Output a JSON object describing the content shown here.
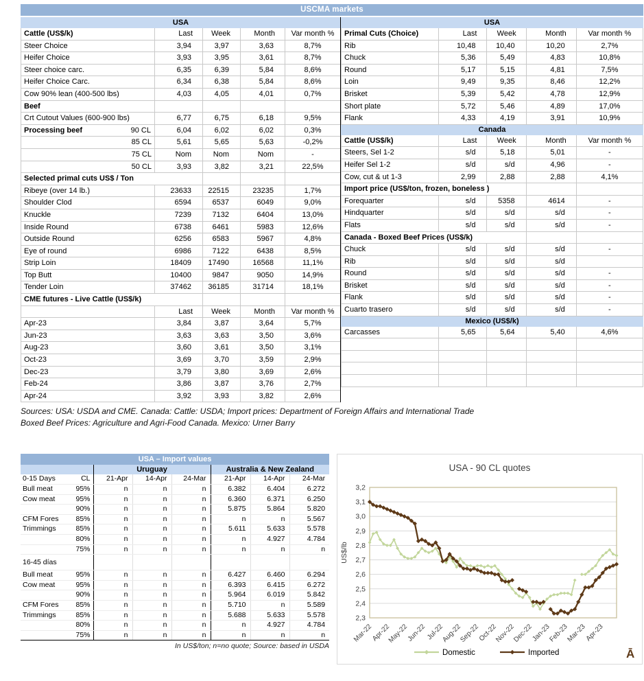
{
  "title": "USCMA markets",
  "colors": {
    "header_blue": "#95b3d7",
    "band_blue": "#c6d9f1",
    "grid_gray": "#d9d9d9",
    "plot_border_tan": "#c8c09a",
    "domestic_green": "#c2d69b",
    "imported_brown": "#5e3a18"
  },
  "left_table": {
    "rows": [
      {
        "t": "band",
        "label": "USA"
      },
      {
        "t": "header",
        "label": "Cattle (US$/k)",
        "bold": true,
        "cells": [
          "Last",
          "Week",
          "Month",
          "Var month %"
        ]
      },
      {
        "t": "d",
        "label": "Steer Choice",
        "cells": [
          "3,94",
          "3,97",
          "3,63",
          "8,7%"
        ]
      },
      {
        "t": "d",
        "label": "Heifer Choice",
        "cells": [
          "3,93",
          "3,95",
          "3,61",
          "8,7%"
        ]
      },
      {
        "t": "d",
        "label": "Steer choice carc.",
        "cells": [
          "6,35",
          "6,39",
          "5,84",
          "8,6%"
        ]
      },
      {
        "t": "d",
        "label": "Heifer Choice Carc.",
        "cells": [
          "6,34",
          "6,38",
          "5,84",
          "8,6%"
        ]
      },
      {
        "t": "d",
        "label": "Cow 90% lean (400-500 lbs)",
        "cells": [
          "4,03",
          "4,05",
          "4,01",
          "0,7%"
        ]
      },
      {
        "t": "d",
        "label": "Beef",
        "bold": true,
        "cells": [
          "",
          "",
          "",
          ""
        ]
      },
      {
        "t": "d",
        "label": "Crt Cutout Values (600-900 lbs)",
        "cells": [
          "6,77",
          "6,75",
          "6,18",
          "9,5%"
        ]
      },
      {
        "t": "split",
        "label": "Processing beef",
        "sublabel": "90 CL",
        "cells": [
          "6,04",
          "6,02",
          "6,02",
          "0,3%"
        ]
      },
      {
        "t": "r",
        "label": "85 CL",
        "cells": [
          "5,61",
          "5,65",
          "5,63",
          "-0,2%"
        ]
      },
      {
        "t": "r",
        "label": "75 CL",
        "cells": [
          "Nom",
          "Nom",
          "Nom",
          "-"
        ]
      },
      {
        "t": "r",
        "label": "50 CL",
        "cells": [
          "3,93",
          "3,82",
          "3,21",
          "22,5%"
        ]
      },
      {
        "t": "section",
        "label": "Selected primal cuts US$ / Ton",
        "span": 2,
        "cells": [
          "",
          "",
          ""
        ]
      },
      {
        "t": "d",
        "label": "Ribeye (over 14 lb.)",
        "cells": [
          "23633",
          "22515",
          "23235",
          "1,7%"
        ]
      },
      {
        "t": "d",
        "label": "Shoulder Clod",
        "cells": [
          "6594",
          "6537",
          "6049",
          "9,0%"
        ]
      },
      {
        "t": "d",
        "label": "Knuckle",
        "cells": [
          "7239",
          "7132",
          "6404",
          "13,0%"
        ]
      },
      {
        "t": "d",
        "label": "Inside Round",
        "cells": [
          "6738",
          "6461",
          "5983",
          "12,6%"
        ]
      },
      {
        "t": "d",
        "label": "Outside Round",
        "cells": [
          "6256",
          "6583",
          "5967",
          "4,8%"
        ]
      },
      {
        "t": "d",
        "label": "Eye of round",
        "cells": [
          "6986",
          "7122",
          "6438",
          "8,5%"
        ]
      },
      {
        "t": "d",
        "label": "Strip Loin",
        "cells": [
          "18409",
          "17490",
          "16568",
          "11,1%"
        ]
      },
      {
        "t": "d",
        "label": "Top Butt",
        "cells": [
          "10400",
          "9847",
          "9050",
          "14,9%"
        ]
      },
      {
        "t": "d",
        "label": "Tender Loin",
        "cells": [
          "37462",
          "36185",
          "31714",
          "18,1%"
        ]
      },
      {
        "t": "section",
        "label": "CME futures - Live Cattle (US$/k)",
        "span": 2,
        "cells": [
          "",
          "",
          ""
        ]
      },
      {
        "t": "header",
        "label": "",
        "cells": [
          "Last",
          "Week",
          "Month",
          "Var month %"
        ]
      },
      {
        "t": "d",
        "label": "Apr-23",
        "cells": [
          "3,84",
          "3,87",
          "3,64",
          "5,7%"
        ]
      },
      {
        "t": "d",
        "label": "Jun-23",
        "cells": [
          "3,63",
          "3,63",
          "3,50",
          "3,6%"
        ]
      },
      {
        "t": "d",
        "label": "Aug-23",
        "cells": [
          "3,60",
          "3,61",
          "3,50",
          "3,1%"
        ]
      },
      {
        "t": "d",
        "label": "Oct-23",
        "cells": [
          "3,69",
          "3,70",
          "3,59",
          "2,9%"
        ]
      },
      {
        "t": "d",
        "label": "Dec-23",
        "cells": [
          "3,79",
          "3,80",
          "3,69",
          "2,6%"
        ]
      },
      {
        "t": "d",
        "label": "Feb-24",
        "cells": [
          "3,86",
          "3,87",
          "3,76",
          "2,7%"
        ]
      },
      {
        "t": "d",
        "label": "Apr-24",
        "cells": [
          "3,92",
          "3,93",
          "3,82",
          "2,6%"
        ]
      }
    ]
  },
  "right_table": {
    "rows": [
      {
        "t": "band",
        "label": "USA"
      },
      {
        "t": "header",
        "label": "Primal Cuts (Choice)",
        "cells": [
          "Last",
          "Week",
          "Month",
          "Var month %"
        ]
      },
      {
        "t": "d",
        "label": "Rib",
        "cells": [
          "10,48",
          "10,40",
          "10,20",
          "2,7%"
        ]
      },
      {
        "t": "d",
        "label": "Chuck",
        "cells": [
          "5,36",
          "5,49",
          "4,83",
          "10,8%"
        ]
      },
      {
        "t": "d",
        "label": "Round",
        "cells": [
          "5,17",
          "5,15",
          "4,81",
          "7,5%"
        ]
      },
      {
        "t": "d",
        "label": "Loin",
        "cells": [
          "9,49",
          "9,35",
          "8,46",
          "12,2%"
        ]
      },
      {
        "t": "d",
        "label": "Brisket",
        "cells": [
          "5,39",
          "5,42",
          "4,78",
          "12,9%"
        ]
      },
      {
        "t": "d",
        "label": "Short plate",
        "cells": [
          "5,72",
          "5,46",
          "4,89",
          "17,0%"
        ]
      },
      {
        "t": "d",
        "label": "Flank",
        "cells": [
          "4,33",
          "4,19",
          "3,91",
          "10,9%"
        ]
      },
      {
        "t": "band",
        "label": "Canada"
      },
      {
        "t": "header",
        "label": "Cattle (US$/k)",
        "bold": true,
        "cells": [
          "Last",
          "Week",
          "Month",
          "Var month %"
        ]
      },
      {
        "t": "d",
        "label": "Steers, Sel 1-2",
        "cells": [
          "s/d",
          "5,18",
          "5,01",
          "-"
        ]
      },
      {
        "t": "d",
        "label": "Heifer Sel 1-2",
        "cells": [
          "s/d",
          "s/d",
          "4,96",
          "-"
        ]
      },
      {
        "t": "d",
        "label": "Cow, cut & ut 1-3",
        "cells": [
          "2,99",
          "2,88",
          "2,88",
          "4,1%"
        ]
      },
      {
        "t": "section",
        "label": "Import price (US$/ton, frozen, boneless )",
        "span": 3,
        "cells": [
          "",
          ""
        ]
      },
      {
        "t": "d",
        "label": "Forequarter",
        "cells": [
          "s/d",
          "5358",
          "4614",
          "-"
        ]
      },
      {
        "t": "d",
        "label": "Hindquarter",
        "cells": [
          "s/d",
          "s/d",
          "s/d",
          "-"
        ]
      },
      {
        "t": "d",
        "label": "Flats",
        "cells": [
          "s/d",
          "s/d",
          "s/d",
          "-"
        ]
      },
      {
        "t": "section",
        "label": "Canada - Boxed Beef Prices (US$/k)",
        "span": 3,
        "cells": [
          "",
          ""
        ]
      },
      {
        "t": "d",
        "label": "Chuck",
        "cells": [
          "s/d",
          "s/d",
          "s/d",
          "-"
        ]
      },
      {
        "t": "d",
        "label": "Rib",
        "cells": [
          "s/d",
          "s/d",
          "s/d",
          ""
        ]
      },
      {
        "t": "d",
        "label": "Round",
        "cells": [
          "s/d",
          "s/d",
          "s/d",
          "-"
        ]
      },
      {
        "t": "d",
        "label": "Brisket",
        "cells": [
          "s/d",
          "s/d",
          "s/d",
          "-"
        ]
      },
      {
        "t": "d",
        "label": "Flank",
        "cells": [
          "s/d",
          "s/d",
          "s/d",
          "-"
        ]
      },
      {
        "t": "d",
        "label": "Cuarto trasero",
        "cells": [
          "s/d",
          "s/d",
          "s/d",
          "-"
        ]
      },
      {
        "t": "band",
        "label": "Mexico (US$/k)"
      },
      {
        "t": "d",
        "label": "Carcasses",
        "cells": [
          "5,65",
          "5,64",
          "5,40",
          "4,6%"
        ]
      },
      {
        "t": "empty"
      },
      {
        "t": "empty"
      },
      {
        "t": "empty"
      },
      {
        "t": "empty"
      }
    ]
  },
  "sources": {
    "line1": "Sources: USA: USDA and CME. Canada: Cattle: USDA; Import prices: Department of Foreign Affairs and International Trade",
    "line2": "Boxed Beef Prices: Agriculture and Agri-Food Canada. Mexico: Urner Barry"
  },
  "import_table": {
    "title": "USA – Import values",
    "group_headers": [
      "Uruguay",
      "Australia & New Zealand"
    ],
    "header": [
      "0-15 Days",
      "CL",
      "21-Apr",
      "14-Apr",
      "24-Mar",
      "21-Apr",
      "14-Apr",
      "24-Mar"
    ],
    "rows": [
      {
        "label": "Bull meat",
        "cl": "95%",
        "cells": [
          "n",
          "n",
          "n",
          "6.382",
          "6.404",
          "6.272"
        ]
      },
      {
        "label": "Cow meat",
        "cl": "95%",
        "cells": [
          "n",
          "n",
          "n",
          "6.360",
          "6.371",
          "6.250"
        ]
      },
      {
        "label": "",
        "cl": "90%",
        "cells": [
          "n",
          "n",
          "n",
          "5.875",
          "5.864",
          "5.820"
        ]
      },
      {
        "label": "CFM Fores",
        "cl": "85%",
        "cells": [
          "n",
          "n",
          "n",
          "n",
          "n",
          "5.567"
        ]
      },
      {
        "label": "Trimmings",
        "cl": "85%",
        "cells": [
          "n",
          "n",
          "n",
          "5.611",
          "5.633",
          "5.578"
        ]
      },
      {
        "label": "",
        "cl": "80%",
        "cells": [
          "n",
          "n",
          "n",
          "n",
          "4.927",
          "4.784"
        ]
      },
      {
        "label": "",
        "cl": "75%",
        "cells": [
          "n",
          "n",
          "n",
          "n",
          "n",
          "n"
        ]
      },
      {
        "t": "section",
        "label": "16-45 días"
      },
      {
        "label": "Bull meat",
        "cl": "95%",
        "cells": [
          "n",
          "n",
          "n",
          "6.427",
          "6.460",
          "6.294"
        ]
      },
      {
        "label": "Cow meat",
        "cl": "95%",
        "cells": [
          "n",
          "n",
          "n",
          "6.393",
          "6.415",
          "6.272"
        ]
      },
      {
        "label": "",
        "cl": "90%",
        "cells": [
          "n",
          "n",
          "n",
          "5.964",
          "6.019",
          "5.842"
        ]
      },
      {
        "label": "CFM Fores",
        "cl": "85%",
        "cells": [
          "n",
          "n",
          "n",
          "5.710",
          "n",
          "5.589"
        ]
      },
      {
        "label": "Trimmings",
        "cl": "85%",
        "cells": [
          "n",
          "n",
          "n",
          "5.688",
          "5.633",
          "5.578"
        ]
      },
      {
        "label": "",
        "cl": "80%",
        "cells": [
          "n",
          "n",
          "n",
          "n",
          "4.927",
          "4.784"
        ]
      },
      {
        "label": "",
        "cl": "75%",
        "cells": [
          "n",
          "n",
          "n",
          "n",
          "n",
          "n"
        ]
      }
    ],
    "footnote": "In US$/ton; n=no quote; Source: based in USDA"
  },
  "chart_data": {
    "type": "line",
    "title": "USA - 90 CL quotes",
    "ylabel": "US$/lb",
    "ylim": [
      2.3,
      3.2
    ],
    "ytick_step": 0.1,
    "x_labels": [
      "Mar-22",
      "Apr-22",
      "May-22",
      "Jun-22",
      "Jul-22",
      "Aug-22",
      "Sep-22",
      "Oct-22",
      "Nov-22",
      "Dec-22",
      "Jan-23",
      "Feb-23",
      "Mar-23",
      "Apr-23"
    ],
    "legend_position": "bottom",
    "grid": true,
    "watermark": "Ā",
    "series": [
      {
        "name": "Domestic",
        "color": "#c2d69b",
        "marker": "diamond",
        "values": [
          2.82,
          2.88,
          2.89,
          2.84,
          2.81,
          2.8,
          2.8,
          2.84,
          2.78,
          2.74,
          2.72,
          2.71,
          2.71,
          2.72,
          2.75,
          2.78,
          2.76,
          2.75,
          2.76,
          2.78,
          2.74,
          2.7,
          2.68,
          2.72,
          2.69,
          2.65,
          2.71,
          2.68,
          2.66,
          2.66,
          2.65,
          2.66,
          2.66,
          2.65,
          2.66,
          2.65,
          2.66,
          2.63,
          2.6,
          2.57,
          2.53,
          2.5,
          2.47,
          2.45,
          2.44,
          2.47,
          2.44,
          2.38,
          2.4,
          2.36,
          2.4,
          2.43,
          2.45,
          2.46,
          2.46,
          2.47,
          2.47,
          2.47,
          2.46,
          2.56,
          null,
          2.6,
          2.6,
          2.62,
          2.64,
          2.66,
          2.7,
          2.73,
          2.75,
          2.77,
          2.74,
          2.73
        ]
      },
      {
        "name": "Imported",
        "color": "#5e3a18",
        "marker": "diamond",
        "values": [
          3.1,
          3.08,
          3.07,
          3.07,
          3.06,
          3.05,
          3.04,
          3.03,
          3.02,
          3.01,
          3.0,
          2.99,
          2.97,
          2.95,
          2.83,
          2.84,
          2.83,
          2.81,
          2.8,
          2.82,
          2.78,
          2.69,
          2.7,
          2.74,
          2.71,
          2.69,
          2.66,
          2.64,
          2.64,
          2.63,
          2.64,
          2.63,
          2.62,
          2.61,
          2.61,
          2.61,
          2.6,
          2.6,
          2.56,
          2.55,
          2.55,
          2.56,
          null,
          2.5,
          2.49,
          2.48,
          null,
          2.41,
          2.41,
          2.4,
          2.41,
          null,
          2.36,
          2.33,
          2.33,
          2.35,
          2.34,
          2.33,
          2.35,
          2.36,
          2.41,
          2.46,
          2.51,
          2.51,
          2.52,
          2.56,
          2.58,
          2.61,
          2.64,
          2.65,
          2.66,
          2.67
        ]
      }
    ]
  }
}
